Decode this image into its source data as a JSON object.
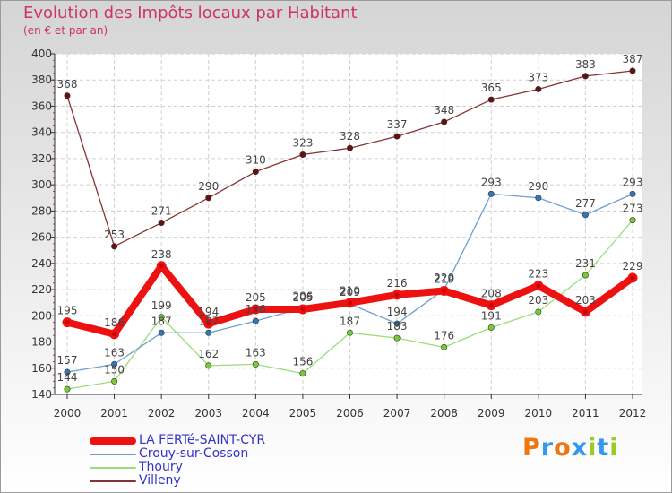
{
  "colors": {
    "title": "#cc3366",
    "legend_text": "#3333cc",
    "axis": "#333333",
    "grid": "#cfcfcf",
    "value_label": "#444444"
  },
  "chart_data": {
    "type": "line",
    "title": "Evolution des Impôts locaux par Habitant",
    "subtitle": "(en € et par an)",
    "xlabel": "",
    "ylabel": "",
    "ylim": [
      140,
      400
    ],
    "y_ticks": [
      140,
      160,
      180,
      200,
      220,
      240,
      260,
      280,
      300,
      320,
      340,
      360,
      380,
      400
    ],
    "grid": true,
    "legend_position": "bottom-left",
    "x": [
      "2000",
      "2001",
      "2002",
      "2003",
      "2004",
      "2005",
      "2006",
      "2007",
      "2008",
      "2009",
      "2010",
      "2011",
      "2012"
    ],
    "series": [
      {
        "name": "LA FERTé-SAINT-CYR",
        "color": "#ee1111",
        "marker_color": "#cc0000",
        "emphasis": "thick",
        "values": [
          195,
          186,
          238,
          194,
          205,
          205,
          210,
          216,
          219,
          208,
          223,
          203,
          229
        ]
      },
      {
        "name": "Crouy-sur-Cosson",
        "color": "#6f9fcf",
        "marker_color": "#3377bb",
        "emphasis": "thin",
        "values": [
          157,
          163,
          187,
          187,
          196,
          206,
          209,
          194,
          220,
          293,
          290,
          277,
          293
        ]
      },
      {
        "name": "Thoury",
        "color": "#99dd77",
        "marker_color": "#77cc33",
        "emphasis": "thin",
        "values": [
          144,
          150,
          199,
          162,
          163,
          156,
          187,
          183,
          176,
          191,
          203,
          231,
          273
        ]
      },
      {
        "name": "Villeny",
        "color": "#883333",
        "marker_color": "#661111",
        "emphasis": "thin",
        "values": [
          368,
          253,
          271,
          290,
          310,
          323,
          328,
          337,
          348,
          365,
          373,
          383,
          387
        ]
      }
    ]
  },
  "brand": {
    "letters": [
      {
        "ch": "P",
        "color": "#ee7711"
      },
      {
        "ch": "r",
        "color": "#3399ee"
      },
      {
        "ch": "o",
        "color": "#ee7711"
      },
      {
        "ch": "x",
        "color": "#3399ee"
      },
      {
        "ch": "i",
        "color": "#99cc22"
      },
      {
        "ch": "t",
        "color": "#3399ee"
      },
      {
        "ch": "i",
        "color": "#99cc22"
      }
    ]
  }
}
